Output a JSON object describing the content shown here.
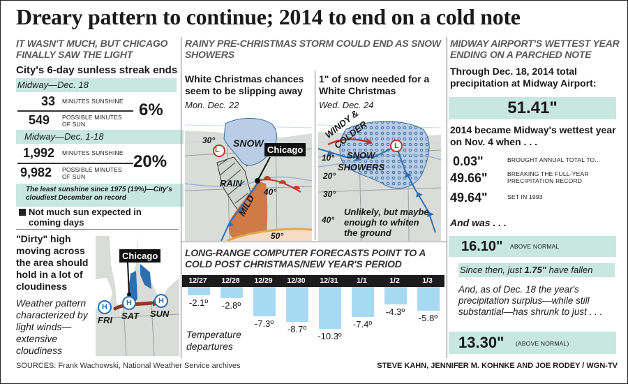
{
  "title": "Dreary pattern to continue; 2014 to end on a cold note",
  "left": {
    "head": "IT WASN'T MUCH, BUT CHICAGO FINALLY SAW THE LIGHT",
    "subhead": "City's 6-day sunless streak ends",
    "band1": "Midway—Dec. 18",
    "s1_num": "33",
    "s1_lbl": "MINUTES SUNSHINE",
    "s2_num": "549",
    "s2_lbl": "POSSIBLE MINUTES OF SUN",
    "s1_pct": "6%",
    "band2": "Midway—Dec. 1-18",
    "s3_num": "1,992",
    "s3_lbl": "MINUTES SUNSHINE",
    "s4_num": "9,982",
    "s4_lbl": "POSSIBLE MINUTES OF SUN",
    "s2_pct": "20%",
    "note": "The least sunshine since 1975 (19%)—City's cloudiest December on record",
    "bullet": "Not much sun expected in coming days",
    "dirty_text": "\"Dirty\" high moving across the area should hold in a lot of cloudiness",
    "weather_text": "Weather pattern characterized by light winds—extensive cloudiness",
    "map_city": "Chicago",
    "days": [
      "FRI",
      "SAT",
      "SUN"
    ],
    "h": "H"
  },
  "mid": {
    "head": "RAINY PRE-CHRISTMAS STORM COULD END AS SNOW SHOWERS",
    "map1_title": "White Christmas chances seem to be slipping away",
    "map1_date": "Mon. Dec. 22",
    "map2_title": "1\" of snow needed for a White Christmas",
    "map2_date": "Wed. Dec. 24",
    "map1_labels": {
      "snow": "SNOW",
      "rain": "RAIN",
      "mild": "MILD",
      "t30": "30°",
      "t40": "40°",
      "t50": "50°",
      "city": "Chicago",
      "low": "L"
    },
    "map2_labels": {
      "windy": "WINDY &",
      "colder": "COLDER",
      "snow": "SNOW",
      "showers": "SHOWERS",
      "t10": "10°",
      "t20": "20°",
      "t30": "30°",
      "t40": "40°",
      "low": "L",
      "note": "Unlikely, but maybe enough to whiten the ground"
    },
    "forecast_head": "LONG-RANGE COMPUTER FORECASTS POINT TO A COLD POST CHRISTMAS/NEW YEAR'S PERIOD",
    "temp_caption": "Temperature departures"
  },
  "right": {
    "head": "MIDWAY AIRPORT'S WETTEST YEAR ENDING ON A PARCHED NOTE",
    "through": "Through Dec. 18, 2014 total precipitation at Midway Airport:",
    "total": "51.41\"",
    "became": "2014 became Midway's wettest year on Nov. 4 when . . .",
    "r1_num": "0.03\"",
    "r1_lbl": "BROUGHT ANNUAL TOTAL TO...",
    "r2_num": "49.66\"",
    "r2_lbl": "BREAKING THE FULL-YEAR PRECIPITATION RECORD",
    "r3_num": "49.64\"",
    "r3_lbl": "SET IN 1993",
    "and_was": "And was . . .",
    "above1_num": "16.10\"",
    "above1_lbl": "ABOVE NORMAL",
    "since_pre": "Since then, just ",
    "since_num": "1.75\"",
    "since_post": " have fallen",
    "surplus": "And, as of Dec. 18 the year's precipitation surplus—while still substantial—has shrunk to just . . .",
    "above2_num": "13.30\"",
    "above2_lbl": "(ABOVE NORMAL)"
  },
  "footer": {
    "sources": "SOURCES: Frank Wachowski, National Weather Service archives",
    "credit": "STEVE KAHN, JENNIFER M. KOHNKE AND JOE RODEY / WGN-TV"
  },
  "chart_data": {
    "type": "bar",
    "title": "LONG-RANGE COMPUTER FORECASTS POINT TO A COLD POST CHRISTMAS/NEW YEAR'S PERIOD",
    "categories": [
      "12/27",
      "12/28",
      "12/29",
      "12/30",
      "12/31",
      "1/1",
      "1/2",
      "1/3"
    ],
    "values": [
      -2.1,
      -2.8,
      -7.3,
      -8.7,
      -10.3,
      -7.4,
      -4.3,
      -5.8
    ],
    "value_labels": [
      "-2.1º",
      "-2.8º",
      "-7.3º",
      "-8.7º",
      "-10.3º",
      "-7.4º",
      "-4.3º",
      "-5.8º"
    ],
    "ylim": [
      -11,
      0
    ],
    "bar_color": "#a8d9f3",
    "header_color": "#1c1c1c"
  }
}
